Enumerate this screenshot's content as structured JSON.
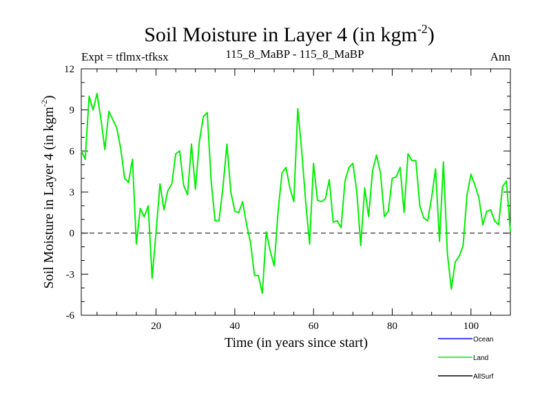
{
  "chart_data": {
    "type": "line",
    "title": "Soil Moisture in Layer 4 (in kgm",
    "title_sup": "-2",
    "title_close": ")",
    "subtitle_left": "Expt = tflmx-tfksx",
    "subtitle_center": "115_8_MaBP - 115_8_MaBP",
    "subtitle_right": "Ann",
    "xlabel": "Time (in years since start)",
    "ylabel": "Soil Moisture in Layer 4 (in kgm",
    "ylabel_sup": "-2",
    "ylabel_close": ")",
    "xlim": [
      1,
      110
    ],
    "ylim": [
      -6,
      12
    ],
    "x_ticks": [
      20,
      40,
      60,
      80,
      100
    ],
    "y_ticks": [
      -6,
      -3,
      0,
      3,
      6,
      9,
      12
    ],
    "reference_line": 0,
    "legend": [
      {
        "name": "Ocean",
        "color": "#0000ff"
      },
      {
        "name": "Land",
        "color": "#00ee00"
      },
      {
        "name": "AllSurf",
        "color": "#000000"
      }
    ],
    "series": [
      {
        "name": "Land",
        "color": "#00ee00",
        "x": [
          1,
          2,
          3,
          4,
          5,
          6,
          7,
          8,
          9,
          10,
          11,
          12,
          13,
          14,
          15,
          16,
          17,
          18,
          19,
          20,
          21,
          22,
          23,
          24,
          25,
          26,
          27,
          28,
          29,
          30,
          31,
          32,
          33,
          34,
          35,
          36,
          37,
          38,
          39,
          40,
          41,
          42,
          43,
          44,
          45,
          46,
          47,
          48,
          49,
          50,
          51,
          52,
          53,
          54,
          55,
          56,
          57,
          58,
          59,
          60,
          61,
          62,
          63,
          64,
          65,
          66,
          67,
          68,
          69,
          70,
          71,
          72,
          73,
          74,
          75,
          76,
          77,
          78,
          79,
          80,
          81,
          82,
          83,
          84,
          85,
          86,
          87,
          88,
          89,
          90,
          91,
          92,
          93,
          94,
          95,
          96,
          97,
          98,
          99,
          100,
          101,
          102,
          103,
          104,
          105,
          106,
          107,
          108,
          109,
          110
        ],
        "values": [
          6.0,
          5.4,
          10.0,
          9.0,
          10.2,
          8.3,
          6.1,
          8.9,
          8.3,
          7.7,
          6.2,
          4.0,
          3.7,
          5.4,
          -0.8,
          1.8,
          1.2,
          2.0,
          -3.3,
          0.1,
          3.6,
          1.7,
          3.1,
          3.6,
          5.8,
          6.0,
          3.5,
          2.8,
          6.5,
          3.2,
          6.7,
          8.5,
          8.8,
          3.8,
          0.9,
          0.9,
          3.4,
          6.5,
          3.0,
          1.6,
          1.5,
          2.3,
          0.6,
          -0.7,
          -3.1,
          -3.1,
          -4.4,
          0.1,
          -1.3,
          -2.4,
          1.6,
          4.4,
          4.8,
          3.3,
          2.3,
          9.1,
          6.0,
          2.3,
          -0.8,
          5.1,
          2.4,
          2.3,
          2.5,
          3.9,
          0.8,
          0.9,
          0.4,
          3.8,
          4.8,
          5.1,
          3.0,
          -0.9,
          3.3,
          1.2,
          4.6,
          5.7,
          4.4,
          1.2,
          1.6,
          4.0,
          4.1,
          4.8,
          1.5,
          5.8,
          5.3,
          5.3,
          2.0,
          1.1,
          0.9,
          2.6,
          4.7,
          -0.6,
          5.2,
          -1.5,
          -4.1,
          -2.1,
          -1.7,
          -0.9,
          2.8,
          4.3,
          3.5,
          2.6,
          0.6,
          1.6,
          1.7,
          0.9,
          0.6,
          3.4,
          3.8,
          0.1
        ]
      }
    ]
  }
}
